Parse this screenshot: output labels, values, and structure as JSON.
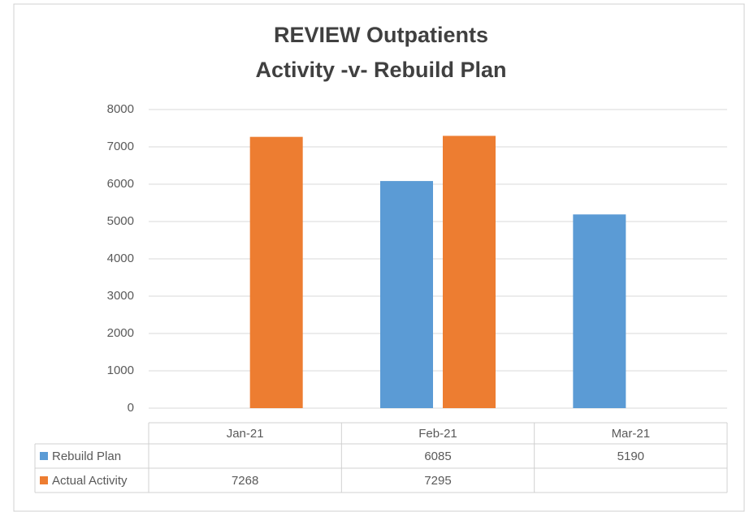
{
  "chart_data": {
    "type": "bar",
    "title": [
      "REVIEW Outpatients",
      "Activity -v- Rebuild Plan"
    ],
    "categories": [
      "Jan-21",
      "Feb-21",
      "Mar-21"
    ],
    "series": [
      {
        "name": "Rebuild Plan",
        "color": "#5b9bd5",
        "values": [
          null,
          6085,
          5190
        ]
      },
      {
        "name": "Actual Activity",
        "color": "#ed7d31",
        "values": [
          7268,
          7295,
          null
        ]
      }
    ],
    "ylim": [
      0,
      8000
    ],
    "yticks": [
      0,
      1000,
      2000,
      3000,
      4000,
      5000,
      6000,
      7000,
      8000
    ],
    "grid": true,
    "data_table": true
  }
}
